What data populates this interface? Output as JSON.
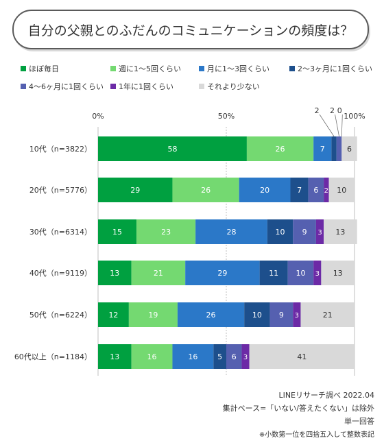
{
  "title": "自分の父親とのふだんのコミュニケーションの頻度は？",
  "legend": [
    {
      "label": "ほぼ毎日",
      "color": "#00a040"
    },
    {
      "label": "週に1～5回くらい",
      "color": "#74d971"
    },
    {
      "label": "月に1～3回くらい",
      "color": "#2b78c8"
    },
    {
      "label": "2～3ヶ月に1回くらい",
      "color": "#1d4f8c"
    },
    {
      "label": "4～6ヶ月に1回くらい",
      "color": "#5560b0"
    },
    {
      "label": "1年に1回くらい",
      "color": "#6c2aa6"
    },
    {
      "label": "それより少ない",
      "color": "#d9d9d9"
    }
  ],
  "chart_data": {
    "type": "bar",
    "orientation": "horizontal",
    "stacked": true,
    "xlim": [
      0,
      100
    ],
    "xticks": [
      "0%",
      "50%",
      "100%"
    ],
    "categories": [
      "10代（n=3822）",
      "20代（n=5776）",
      "30代（n=6314）",
      "40代（n=9119）",
      "50代（n=6224）",
      "60代以上（n=1184）"
    ],
    "series": [
      {
        "name": "ほぼ毎日",
        "values": [
          58,
          29,
          15,
          13,
          12,
          13
        ]
      },
      {
        "name": "週に1～5回くらい",
        "values": [
          26,
          26,
          23,
          21,
          19,
          16
        ]
      },
      {
        "name": "月に1～3回くらい",
        "values": [
          7,
          20,
          28,
          29,
          26,
          16
        ]
      },
      {
        "name": "2～3ヶ月に1回くらい",
        "values": [
          2,
          7,
          10,
          11,
          10,
          5
        ]
      },
      {
        "name": "4～6ヶ月に1回くらい",
        "values": [
          2,
          6,
          9,
          10,
          9,
          6
        ]
      },
      {
        "name": "1年に1回くらい",
        "values": [
          0,
          2,
          3,
          3,
          3,
          3
        ]
      },
      {
        "name": "それより少ない",
        "values": [
          6,
          10,
          13,
          13,
          21,
          41
        ]
      }
    ],
    "grid": true
  },
  "footer": {
    "source": "LINEリサーチ調べ 2022.04",
    "note1": "集計ベース=「いない/答えたくない」は除外",
    "note2": "単一回答",
    "note3": "※小数第一位を四捨五入して整数表記"
  }
}
